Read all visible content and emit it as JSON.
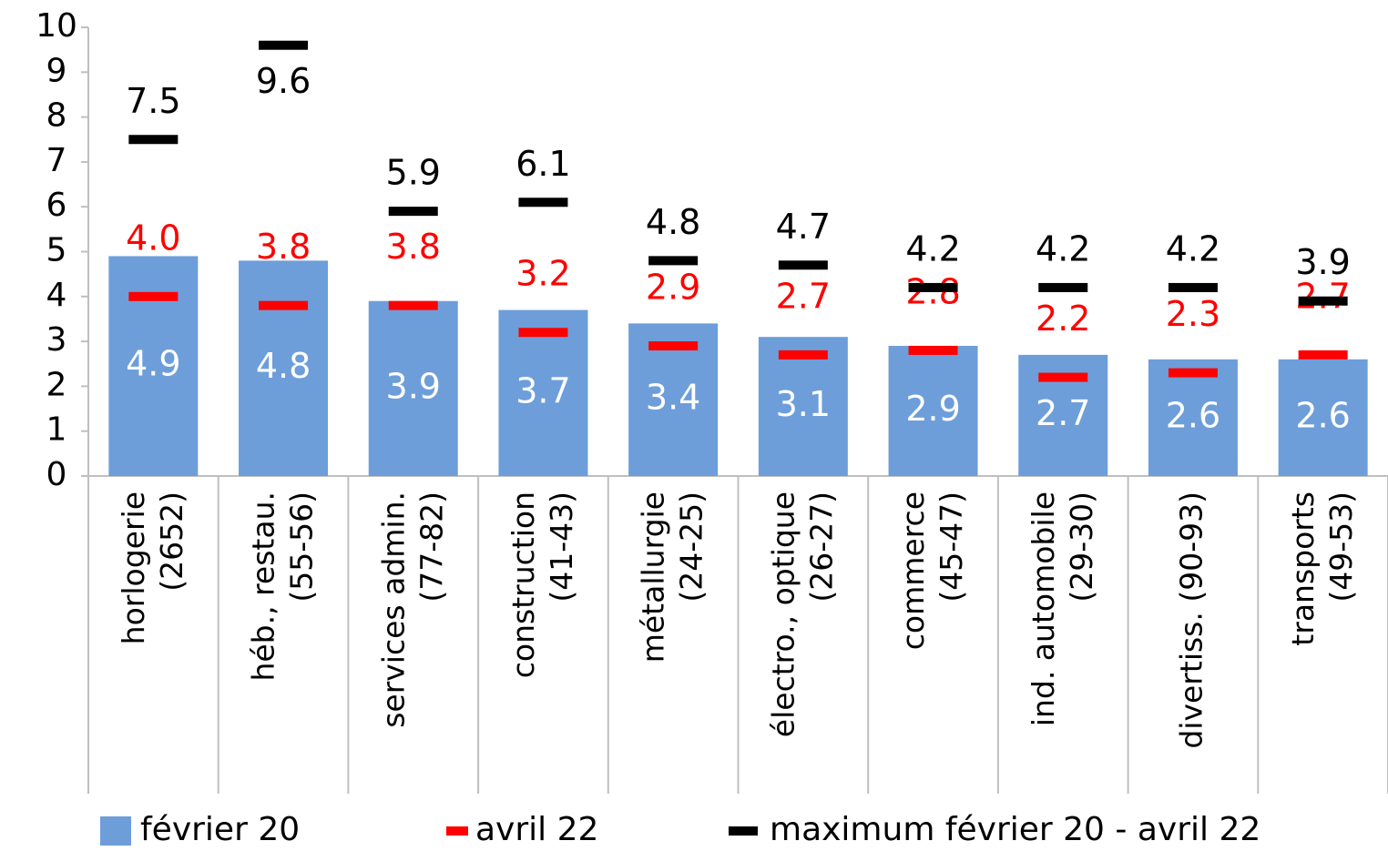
{
  "chart_data": {
    "type": "bar",
    "categories": [
      [
        "horlogerie",
        "(2652)"
      ],
      [
        "héb., restau.",
        "(55-56)"
      ],
      [
        "services admin.",
        "(77-82)"
      ],
      [
        "construction",
        "(41-43)"
      ],
      [
        "métallurgie",
        "(24-25)"
      ],
      [
        "électro., optique",
        "(26-27)"
      ],
      [
        "commerce",
        "(45-47)"
      ],
      [
        "ind. automobile",
        "(29-30)"
      ],
      [
        "divertiss. (90-93)"
      ],
      [
        "transports",
        "(49-53)"
      ]
    ],
    "series": [
      {
        "name": "février 20",
        "color": "#6d9eda",
        "values": [
          4.9,
          4.8,
          3.9,
          3.7,
          3.4,
          3.1,
          2.9,
          2.7,
          2.6,
          2.6
        ]
      },
      {
        "name": "avril 22",
        "color": "#ff0000",
        "values": [
          4,
          3.8,
          3.8,
          3.2,
          2.9,
          2.7,
          2.8,
          2.2,
          2.3,
          2.7
        ],
        "value_labels": [
          "4.0",
          "3.8",
          "3.8",
          "3.2",
          "2.9",
          "2.7",
          "2.8",
          "2.2",
          "2.3",
          "2.7"
        ]
      },
      {
        "name": "maximum février 20 - avril 22",
        "color": "#000000",
        "values": [
          7.5,
          9.6,
          5.9,
          6.1,
          4.8,
          4.7,
          4.2,
          4.2,
          4.2,
          3.9
        ]
      }
    ],
    "ylim": [
      0,
      10
    ],
    "yticks": [
      0,
      1,
      2,
      3,
      4,
      5,
      6,
      7,
      8,
      9,
      10
    ]
  }
}
